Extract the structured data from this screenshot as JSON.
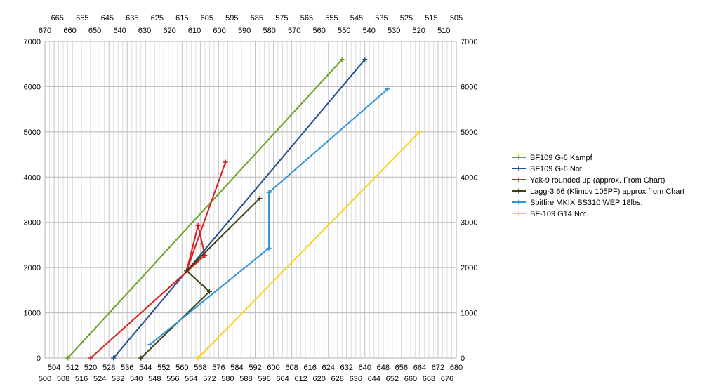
{
  "chart_data": {
    "type": "line",
    "axes": {
      "y_left": {
        "min": 0,
        "max": 7000,
        "ticks": [
          "0",
          "1000",
          "2000",
          "3000",
          "4000",
          "5000",
          "6000",
          "7000"
        ]
      },
      "y_right": {
        "min": 0,
        "max": 7000,
        "ticks": [
          "0",
          "1000",
          "2000",
          "3000",
          "4000",
          "5000",
          "6000",
          "7000"
        ]
      },
      "x_bottom_inner": {
        "min": 500,
        "max": 680,
        "ticks": [
          "504",
          "512",
          "520",
          "528",
          "536",
          "544",
          "552",
          "560",
          "568",
          "576",
          "584",
          "592",
          "600",
          "608",
          "616",
          "624",
          "632",
          "640",
          "648",
          "656",
          "664",
          "672",
          "680"
        ]
      },
      "x_bottom_outer": {
        "ticks": [
          "500",
          "508",
          "516",
          "524",
          "532",
          "540",
          "548",
          "556",
          "564",
          "572",
          "580",
          "588",
          "596",
          "604",
          "612",
          "620",
          "628",
          "636",
          "644",
          "652",
          "660",
          "668",
          "676"
        ]
      },
      "x_top_inner": {
        "min": 670,
        "max": 505,
        "ticks": [
          "670",
          "660",
          "650",
          "640",
          "630",
          "620",
          "610",
          "600",
          "590",
          "580",
          "570",
          "560",
          "550",
          "540",
          "530",
          "520",
          "510"
        ]
      },
      "x_top_outer": {
        "ticks": [
          "665",
          "655",
          "645",
          "635",
          "625",
          "615",
          "605",
          "595",
          "585",
          "575",
          "565",
          "555",
          "545",
          "535",
          "525",
          "515",
          "505"
        ]
      }
    },
    "grid": "vertical-minor-and-horizontal",
    "legend_position": "right",
    "series": [
      {
        "name": "BF109 G-6 Kampf",
        "color": "#6aa121",
        "x": [
          510,
          630
        ],
        "y": [
          0,
          6600
        ]
      },
      {
        "name": "BF109 G-6 Not.",
        "color": "#1f4f8b",
        "x": [
          530,
          640
        ],
        "y": [
          0,
          6600
        ]
      },
      {
        "name": "Yak-9 rounded up (approx. From Chart)",
        "color": "#d91e1e",
        "x": [
          520,
          570,
          567,
          562,
          579
        ],
        "y": [
          0,
          2270,
          2930,
          1930,
          4330
        ]
      },
      {
        "name": "Lagg-3 66 (Klimov 105PF) approx from Chart",
        "color": "#3d3d12",
        "x": [
          542,
          572,
          562,
          594
        ],
        "y": [
          0,
          1470,
          1930,
          3530
        ]
      },
      {
        "name": "Spitfire MKIX BS310 WEP 18lbs.",
        "color": "#2f93d8",
        "x": [
          546,
          598,
          598,
          650
        ],
        "y": [
          300,
          2430,
          3660,
          5950
        ]
      },
      {
        "name": "BF-109 G14 Not.",
        "color": "#f7d31e",
        "x": [
          567,
          664
        ],
        "y": [
          0,
          5000
        ]
      }
    ]
  }
}
